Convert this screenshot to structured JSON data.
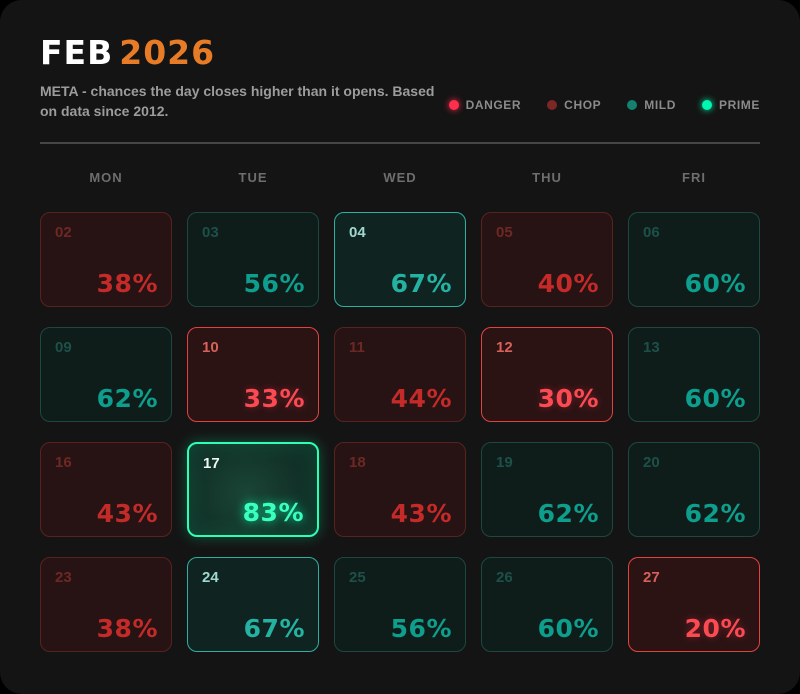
{
  "header": {
    "month": "FEB",
    "year": "2026",
    "subtitle": "META - chances the day closes higher than it opens. Based on data since 2012."
  },
  "legend": {
    "items": [
      {
        "label": "DANGER",
        "color": "#ff2e4d",
        "glow": true
      },
      {
        "label": "CHOP",
        "color": "#7c2626",
        "glow": false
      },
      {
        "label": "MILD",
        "color": "#14806f",
        "glow": false
      },
      {
        "label": "PRIME",
        "color": "#00f7b1",
        "glow": true
      }
    ]
  },
  "calendar": {
    "day_headers": [
      "MON",
      "TUE",
      "WED",
      "THU",
      "FRI"
    ]
  },
  "colors": {
    "year_accent": "#e87b26",
    "danger": "#ff2e4d",
    "chop": "#7c2626",
    "mild": "#14806f",
    "prime": "#00f7b1",
    "card_background": "#141414"
  },
  "chart_data": {
    "type": "heatmap",
    "title": "FEB 2026",
    "subtitle": "META - chances the day closes higher than it opens. Based on data since 2012.",
    "columns": [
      "MON",
      "TUE",
      "WED",
      "THU",
      "FRI"
    ],
    "legend": [
      "DANGER",
      "CHOP",
      "MILD",
      "PRIME"
    ],
    "value_unit": "%",
    "cells": [
      {
        "day": "02",
        "weekday": "MON",
        "value": 38,
        "label": "38%",
        "category": "chop",
        "strong": false
      },
      {
        "day": "03",
        "weekday": "TUE",
        "value": 56,
        "label": "56%",
        "category": "mild",
        "strong": false
      },
      {
        "day": "04",
        "weekday": "WED",
        "value": 67,
        "label": "67%",
        "category": "mild",
        "strong": true
      },
      {
        "day": "05",
        "weekday": "THU",
        "value": 40,
        "label": "40%",
        "category": "chop",
        "strong": false
      },
      {
        "day": "06",
        "weekday": "FRI",
        "value": 60,
        "label": "60%",
        "category": "mild",
        "strong": false
      },
      {
        "day": "09",
        "weekday": "MON",
        "value": 62,
        "label": "62%",
        "category": "mild",
        "strong": false
      },
      {
        "day": "10",
        "weekday": "TUE",
        "value": 33,
        "label": "33%",
        "category": "danger",
        "strong": false
      },
      {
        "day": "11",
        "weekday": "WED",
        "value": 44,
        "label": "44%",
        "category": "chop",
        "strong": false
      },
      {
        "day": "12",
        "weekday": "THU",
        "value": 30,
        "label": "30%",
        "category": "danger",
        "strong": false
      },
      {
        "day": "13",
        "weekday": "FRI",
        "value": 60,
        "label": "60%",
        "category": "mild",
        "strong": false
      },
      {
        "day": "16",
        "weekday": "MON",
        "value": 43,
        "label": "43%",
        "category": "chop",
        "strong": false
      },
      {
        "day": "17",
        "weekday": "TUE",
        "value": 83,
        "label": "83%",
        "category": "prime",
        "strong": true
      },
      {
        "day": "18",
        "weekday": "WED",
        "value": 43,
        "label": "43%",
        "category": "chop",
        "strong": false
      },
      {
        "day": "19",
        "weekday": "THU",
        "value": 62,
        "label": "62%",
        "category": "mild",
        "strong": false
      },
      {
        "day": "20",
        "weekday": "FRI",
        "value": 62,
        "label": "62%",
        "category": "mild",
        "strong": false
      },
      {
        "day": "23",
        "weekday": "MON",
        "value": 38,
        "label": "38%",
        "category": "chop",
        "strong": false
      },
      {
        "day": "24",
        "weekday": "TUE",
        "value": 67,
        "label": "67%",
        "category": "mild",
        "strong": true
      },
      {
        "day": "25",
        "weekday": "WED",
        "value": 56,
        "label": "56%",
        "category": "mild",
        "strong": false
      },
      {
        "day": "26",
        "weekday": "THU",
        "value": 60,
        "label": "60%",
        "category": "mild",
        "strong": false
      },
      {
        "day": "27",
        "weekday": "FRI",
        "value": 20,
        "label": "20%",
        "category": "danger",
        "strong": false
      }
    ]
  }
}
